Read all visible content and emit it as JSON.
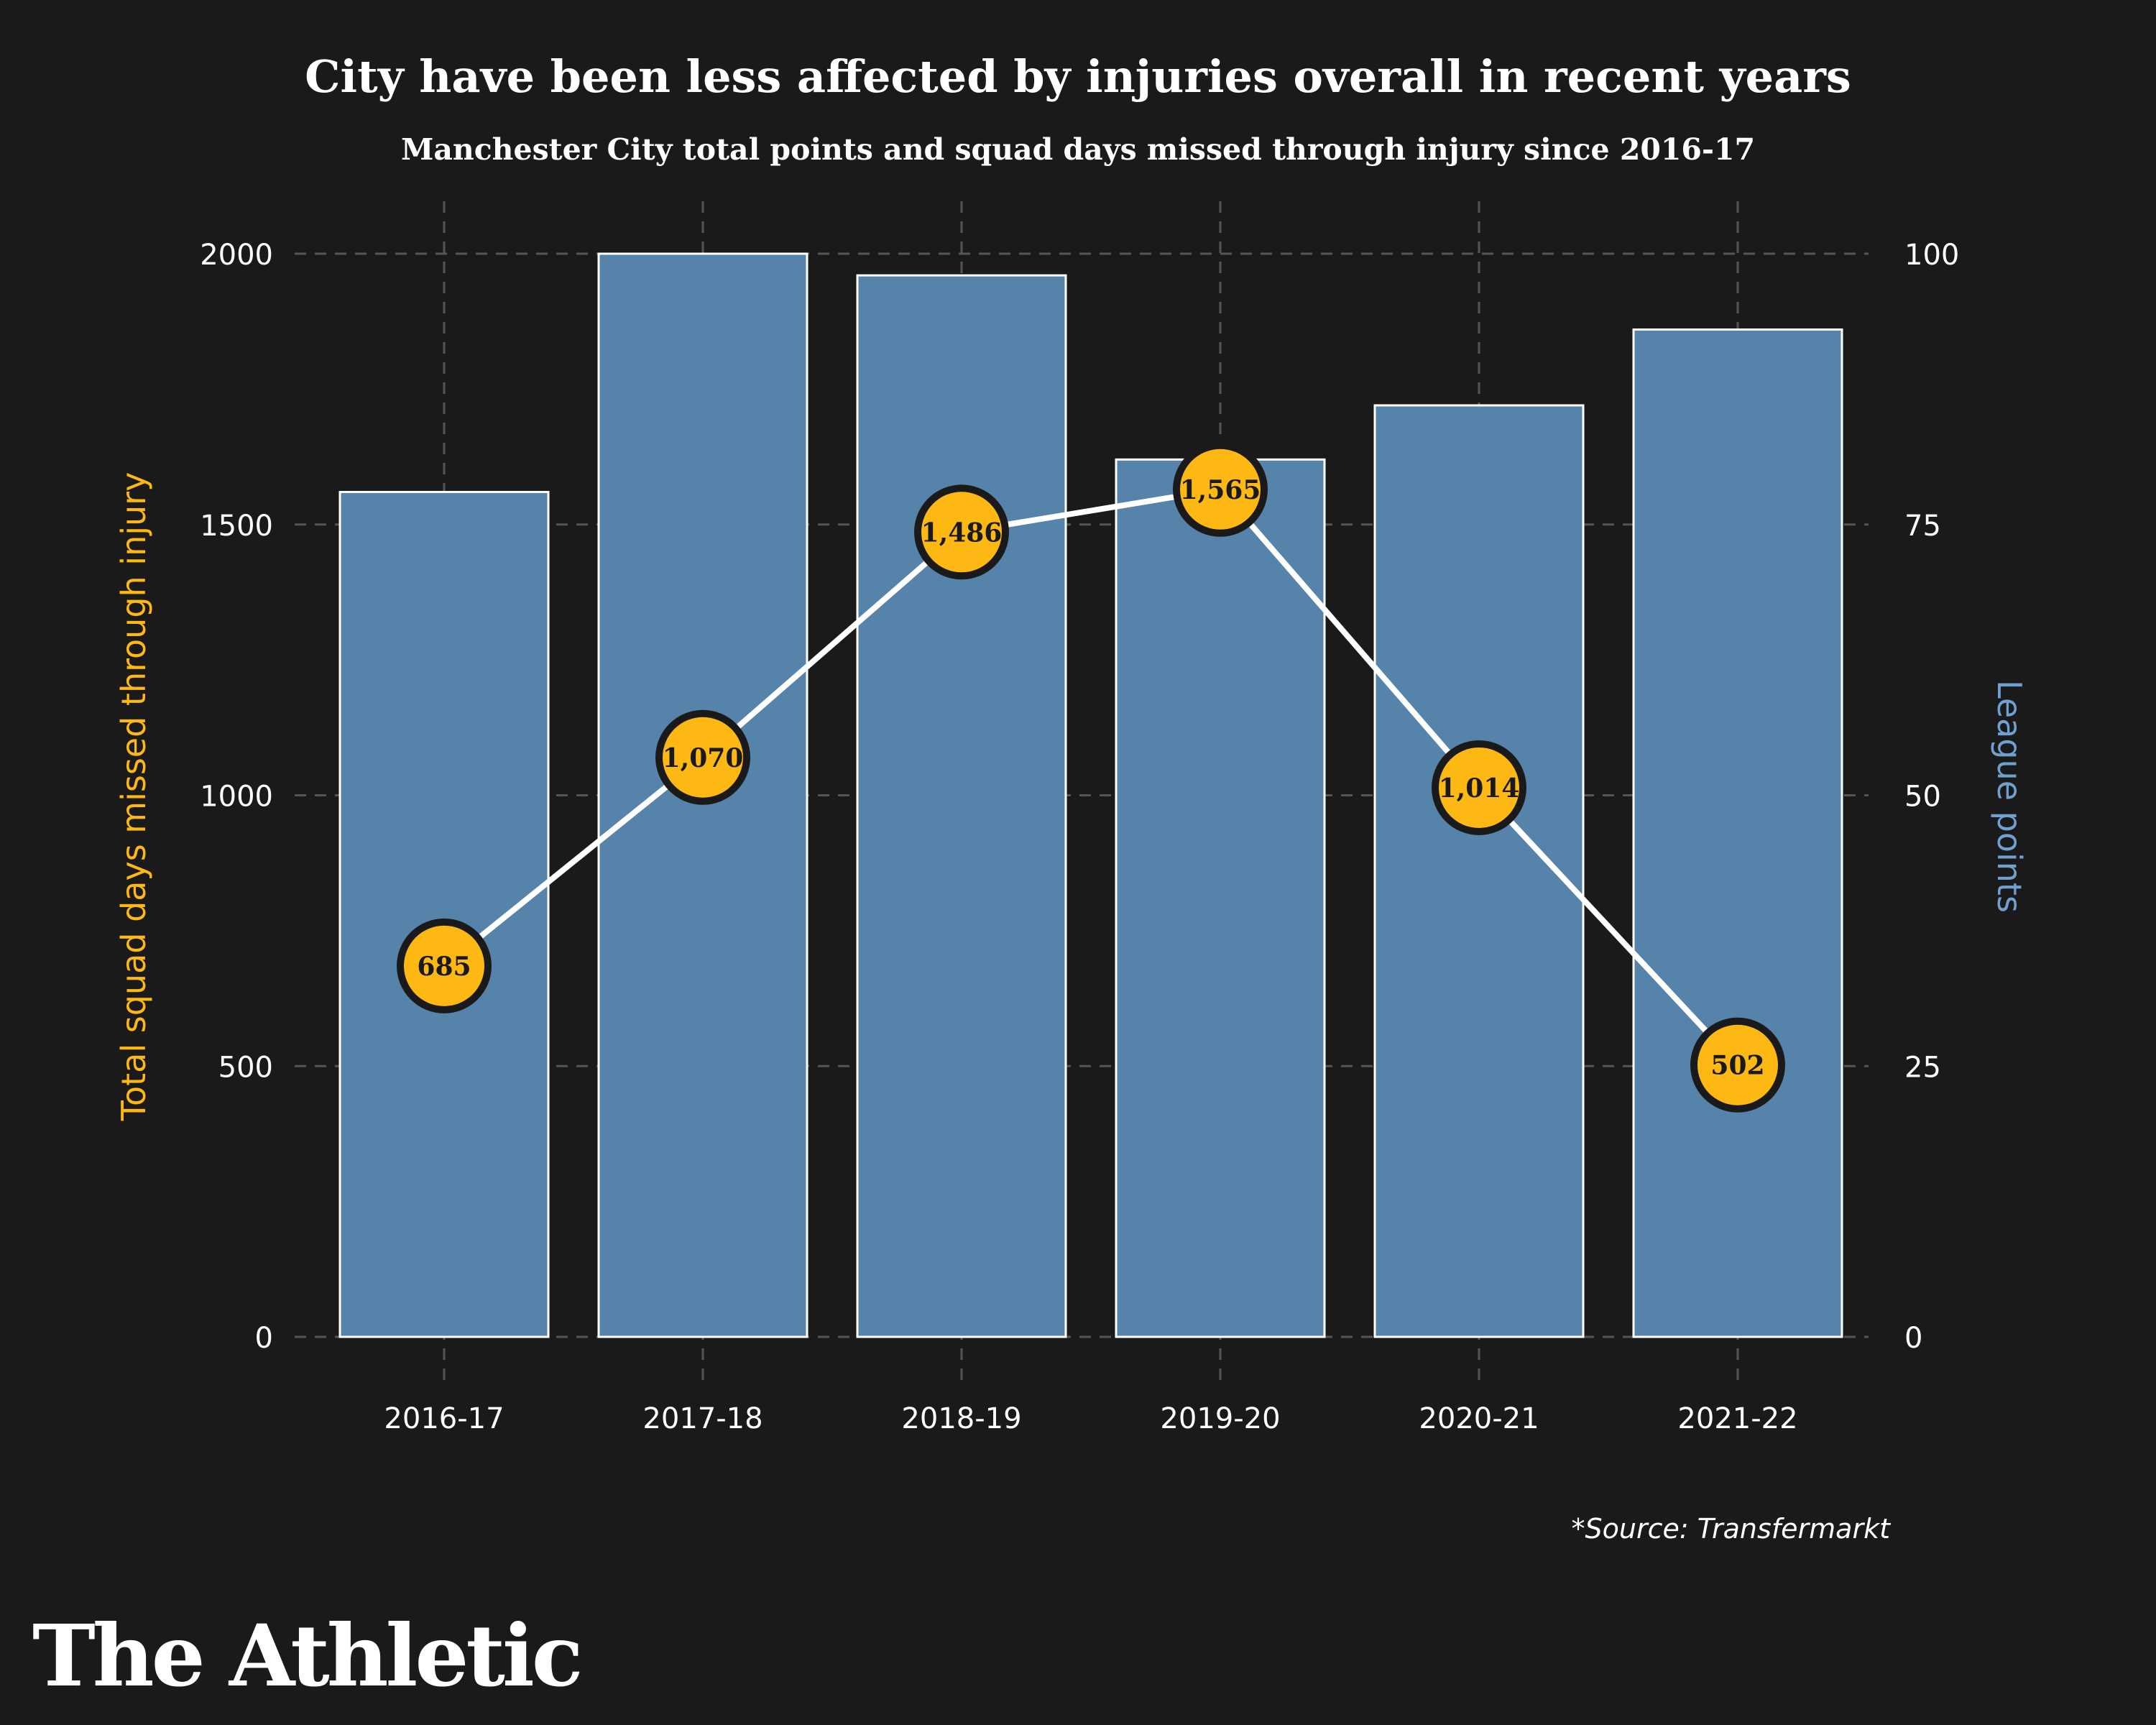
{
  "colors": {
    "background": "#1a1a1a",
    "bar": "#5683aa",
    "bar_edge": "#ffffff",
    "line": "#ffffff",
    "marker": "#fdb813",
    "marker_edge": "#1a1a1a",
    "left_axis_label": "#fdb813",
    "right_axis_label": "#6fa0d0",
    "grid": "#555555"
  },
  "brand": "The Athletic",
  "source": "*Source: Transfermarkt",
  "chart_data": {
    "type": "bar",
    "title": "City have been less affected by injuries overall in recent years",
    "subtitle": "Manchester City total points and squad days missed through injury since 2016-17",
    "categories": [
      "2016-17",
      "2017-18",
      "2018-19",
      "2019-20",
      "2020-21",
      "2021-22"
    ],
    "series": [
      {
        "name": "League points",
        "type": "bar",
        "axis": "right",
        "values": [
          78,
          100,
          98,
          81,
          86,
          93
        ]
      },
      {
        "name": "Total squad days missed through injury",
        "type": "line",
        "axis": "left",
        "values": [
          685,
          1070,
          1486,
          1565,
          1014,
          502
        ],
        "labels": [
          "685",
          "1,070",
          "1,486",
          "1,565",
          "1,014",
          "502"
        ]
      }
    ],
    "ylabel": "Total squad days missed through injury",
    "ylim": [
      0,
      2000
    ],
    "yticks": [
      "0",
      "500",
      "1000",
      "1500",
      "2000"
    ],
    "ylabel_right": "League points",
    "ylim_right": [
      0,
      100
    ],
    "yticks_right": [
      "0",
      "25",
      "50",
      "75",
      "100"
    ],
    "grid": true
  }
}
